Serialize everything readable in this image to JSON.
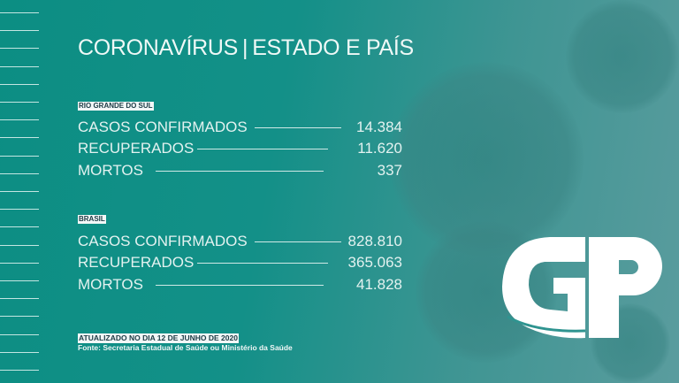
{
  "title": {
    "left": "CORONAVÍRUS",
    "separator": "|",
    "right": "ESTADO E PAÍS"
  },
  "sections": [
    {
      "label": "RIO GRANDE DO SUL",
      "rows": [
        {
          "label": "CASOS CONFIRMADOS",
          "value": "14.384"
        },
        {
          "label": "RECUPERADOS",
          "value": "11.620"
        },
        {
          "label": "MORTOS",
          "value": "337"
        }
      ]
    },
    {
      "label": "BRASIL",
      "rows": [
        {
          "label": "CASOS CONFIRMADOS",
          "value": "828.810"
        },
        {
          "label": "RECUPERADOS",
          "value": "365.063"
        },
        {
          "label": "MORTOS",
          "value": "41.828"
        }
      ]
    }
  ],
  "footer": {
    "updated": "ATUALIZADO NO DIA 12 DE JUNHO DE 2020",
    "source": "Fonte: Secretaria Estadual de Saúde ou Ministério da Saúde"
  },
  "logo": {
    "text": "GP",
    "color": "#ffffff"
  },
  "colors": {
    "background": "#139088",
    "text": "#e6f4f2"
  }
}
